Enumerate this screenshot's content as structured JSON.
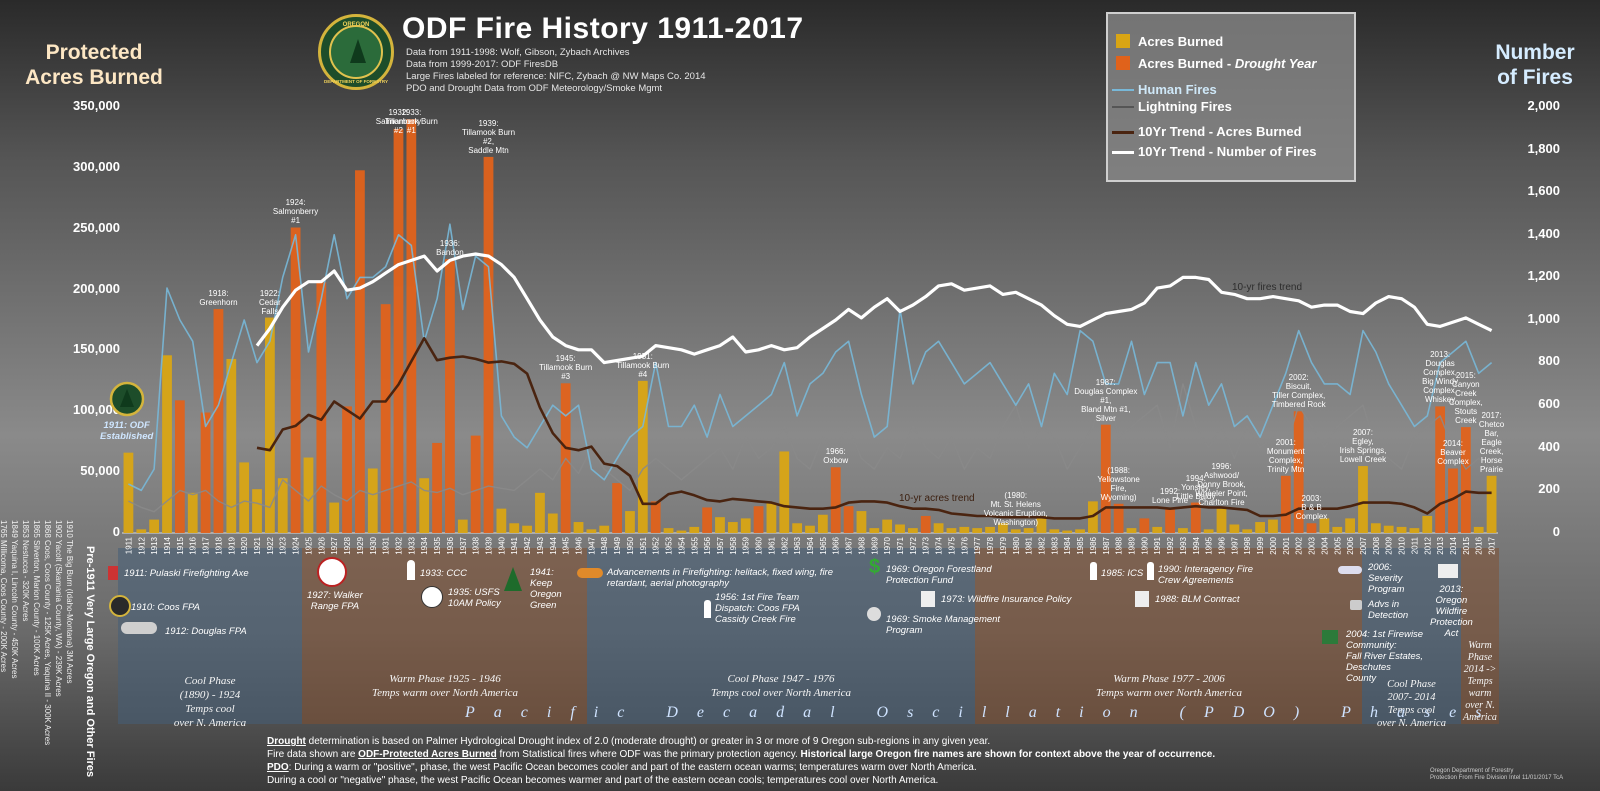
{
  "header": {
    "title": "ODF Fire History 1911-2017",
    "sources": [
      "Data from 1911-1998: Wolf, Gibson, Zybach Archives",
      "Data from 1999-2017: ODF FiresDB",
      "Large Fires labeled for reference: NIFC, Zybach @ NW Maps Co. 2014",
      "PDO and Drought Data from ODF Meteorology/Smoke Mgmt"
    ],
    "logo_top": "OREGON",
    "logo_bottom": "DEPARTMENT OF FORESTRY"
  },
  "axes": {
    "left_title_1": "Protected",
    "left_title_2": "Acres Burned",
    "right_title_1": "Number",
    "right_title_2": "of Fires",
    "left_ticks": [
      "350,000",
      "300,000",
      "250,000",
      "200,000",
      "150,000",
      "100,000",
      "50,000",
      "0"
    ],
    "right_ticks": [
      "2,000",
      "1,800",
      "1,600",
      "1,400",
      "1,200",
      "1,000",
      "800",
      "600",
      "400",
      "200",
      "0"
    ]
  },
  "legend": {
    "acres": "Acres Burned",
    "acres_drought_prefix": "Acres Burned - ",
    "acres_drought_suffix": "Drought Year",
    "human": "Human Fires",
    "lightning": "Lightning Fires",
    "trend_acres": "10Yr Trend - Acres Burned",
    "trend_fires": "10Yr Trend - Number of Fires"
  },
  "colors": {
    "acres": "#d9a514",
    "drought": "#e0621b",
    "human": "#78b8d8",
    "lightning": "#8a8a8a",
    "trend_acres": "#4a2410",
    "trend_fires": "#ffffff"
  },
  "chart_data": {
    "type": "bar",
    "title": "ODF Fire History 1911-2017",
    "ylabel": "Protected Acres Burned",
    "y2label": "Number of Fires",
    "ylim": [
      0,
      350000
    ],
    "y2lim": [
      0,
      2000
    ],
    "years": [
      1911,
      1912,
      1913,
      1914,
      1915,
      1916,
      1917,
      1918,
      1919,
      1920,
      1921,
      1922,
      1923,
      1924,
      1925,
      1926,
      1927,
      1928,
      1929,
      1930,
      1931,
      1932,
      1933,
      1934,
      1935,
      1936,
      1937,
      1938,
      1939,
      1940,
      1941,
      1942,
      1943,
      1944,
      1945,
      1946,
      1947,
      1948,
      1949,
      1950,
      1951,
      1952,
      1953,
      1954,
      1955,
      1956,
      1957,
      1958,
      1959,
      1960,
      1961,
      1962,
      1963,
      1964,
      1965,
      1966,
      1967,
      1968,
      1969,
      1970,
      1971,
      1972,
      1973,
      1974,
      1975,
      1976,
      1977,
      1978,
      1979,
      1980,
      1981,
      1982,
      1983,
      1984,
      1985,
      1986,
      1987,
      1988,
      1989,
      1990,
      1991,
      1992,
      1993,
      1994,
      1995,
      1996,
      1997,
      1998,
      1999,
      2000,
      2001,
      2002,
      2003,
      2004,
      2005,
      2006,
      2007,
      2008,
      2009,
      2010,
      2011,
      2012,
      2013,
      2014,
      2015,
      2016,
      2017
    ],
    "acres_burned": [
      66000,
      3000,
      11000,
      146000,
      109000,
      33000,
      99000,
      184000,
      143000,
      58000,
      36000,
      177000,
      45000,
      251000,
      62000,
      206000,
      25000,
      104000,
      298000,
      53000,
      188000,
      332000,
      340000,
      45000,
      74000,
      225000,
      11000,
      80000,
      309000,
      20000,
      8000,
      6000,
      33000,
      16000,
      123000,
      9000,
      3000,
      6000,
      41000,
      18000,
      125000,
      26000,
      4000,
      2000,
      5000,
      21000,
      13000,
      9000,
      12000,
      22000,
      25000,
      67000,
      8000,
      6000,
      15000,
      54000,
      22000,
      18000,
      4000,
      11000,
      7000,
      4000,
      14000,
      8000,
      4000,
      5000,
      4000,
      5000,
      8000,
      3000,
      4000,
      14000,
      3000,
      2000,
      3000,
      26000,
      89000,
      24000,
      4000,
      12000,
      5000,
      21000,
      4000,
      25000,
      3000,
      20000,
      7000,
      3000,
      9000,
      11000,
      47000,
      100000,
      8000,
      12000,
      5000,
      12000,
      55000,
      8000,
      6000,
      5000,
      4000,
      14000,
      104000,
      53000,
      87000,
      5000,
      47000
    ],
    "drought_years": [
      1915,
      1917,
      1918,
      1924,
      1926,
      1928,
      1929,
      1931,
      1932,
      1933,
      1935,
      1936,
      1938,
      1939,
      1945,
      1949,
      1952,
      1956,
      1960,
      1966,
      1967,
      1973,
      1987,
      1988,
      1990,
      1992,
      1994,
      2001,
      2002,
      2003,
      2013,
      2014,
      2015
    ],
    "human_fires": [
      230,
      200,
      300,
      1150,
      1000,
      900,
      500,
      600,
      800,
      1000,
      800,
      900,
      1200,
      1400,
      850,
      1100,
      1400,
      1100,
      1200,
      1200,
      1250,
      1400,
      1350,
      900,
      1100,
      1450,
      1050,
      1300,
      1250,
      550,
      450,
      400,
      500,
      600,
      550,
      600,
      300,
      250,
      350,
      450,
      500,
      800,
      500,
      500,
      600,
      450,
      650,
      500,
      550,
      600,
      650,
      800,
      550,
      700,
      750,
      850,
      900,
      650,
      450,
      500,
      1050,
      700,
      850,
      900,
      800,
      700,
      750,
      800,
      700,
      600,
      700,
      500,
      750,
      650,
      950,
      900,
      700,
      700,
      900,
      650,
      800,
      800,
      550,
      800,
      600,
      700,
      500,
      550,
      450,
      600,
      750,
      950,
      800,
      700,
      700,
      650,
      950,
      850,
      700,
      600,
      500,
      550,
      800,
      850,
      900,
      750,
      800
    ],
    "lightning_fires": [
      150,
      120,
      100,
      150,
      200,
      180,
      200,
      150,
      120,
      150,
      140,
      120,
      250,
      200,
      150,
      220,
      180,
      150,
      200,
      180,
      200,
      220,
      240,
      200,
      190,
      210,
      180,
      200,
      220,
      210,
      200,
      250,
      300,
      250,
      350,
      280,
      400,
      300,
      250,
      200,
      300,
      350,
      300,
      250,
      300,
      350,
      400,
      300,
      450,
      350,
      400,
      500,
      350,
      300,
      450,
      400,
      500,
      350,
      300,
      400,
      350,
      500,
      400,
      350,
      450,
      300,
      400,
      350,
      500,
      600,
      400,
      500,
      450,
      300,
      400,
      500,
      700,
      450,
      500,
      550,
      600,
      400,
      700,
      500,
      400,
      500,
      350,
      500,
      400,
      450,
      400,
      600,
      500,
      400,
      500,
      550,
      600,
      400,
      350,
      300,
      450,
      500,
      550,
      400,
      300,
      350,
      300
    ],
    "trend_acres": [
      null,
      null,
      null,
      null,
      null,
      null,
      null,
      null,
      null,
      null,
      70000,
      68000,
      85000,
      88000,
      97000,
      93000,
      108000,
      101000,
      94000,
      108000,
      108000,
      122000,
      141000,
      160000,
      142000,
      144000,
      145000,
      143000,
      140000,
      141000,
      139000,
      131000,
      103000,
      82000,
      70000,
      68000,
      71000,
      57000,
      55000,
      47000,
      24000,
      24000,
      32000,
      34000,
      31000,
      27000,
      26000,
      28000,
      27000,
      26000,
      25000,
      22000,
      21000,
      20000,
      20000,
      21000,
      25000,
      26000,
      26000,
      25000,
      22000,
      20000,
      20000,
      19000,
      16000,
      15000,
      14000,
      14000,
      13000,
      13000,
      13000,
      13000,
      12000,
      12000,
      12000,
      14000,
      21000,
      21000,
      21000,
      21000,
      21000,
      20000,
      21000,
      22000,
      21000,
      21000,
      20000,
      19000,
      14000,
      14000,
      15000,
      20000,
      20000,
      20000,
      20000,
      22000,
      25000,
      25000,
      25000,
      24000,
      21000,
      16000,
      24000,
      28000,
      34000,
      33000,
      33000
    ],
    "trend_fires": [
      null,
      null,
      null,
      null,
      null,
      null,
      null,
      null,
      null,
      null,
      880,
      960,
      1060,
      1140,
      1180,
      1180,
      1230,
      1140,
      1150,
      1180,
      1220,
      1260,
      1280,
      1300,
      1230,
      1280,
      1300,
      1310,
      1300,
      1260,
      1200,
      1100,
      1000,
      920,
      880,
      860,
      860,
      800,
      810,
      820,
      830,
      880,
      870,
      860,
      840,
      860,
      880,
      920,
      850,
      860,
      880,
      860,
      870,
      920,
      960,
      1000,
      1050,
      1010,
      1060,
      1100,
      1040,
      1070,
      1110,
      1160,
      1170,
      1140,
      1150,
      1160,
      1120,
      1130,
      1100,
      1070,
      1020,
      980,
      970,
      1000,
      1030,
      1040,
      1050,
      1080,
      1150,
      1160,
      1200,
      1200,
      1190,
      1130,
      1120,
      1100,
      1100,
      1110,
      1100,
      1090,
      1060,
      1070,
      1070,
      1040,
      1030,
      1080,
      1110,
      1100,
      1060,
      980,
      970,
      990,
      1010,
      980,
      950
    ]
  },
  "fire_labels": [
    {
      "year": 1918,
      "lines": [
        "1918:",
        "Greenhorn"
      ]
    },
    {
      "year": 1922,
      "lines": [
        "1922:",
        "Cedar",
        "Falls"
      ]
    },
    {
      "year": 1924,
      "lines": [
        "1924:",
        "Salmonberry",
        "#1"
      ]
    },
    {
      "year": 1932,
      "lines": [
        "1932:",
        "Salmonberry",
        "#2"
      ]
    },
    {
      "year": 1933,
      "lines": [
        "1933:",
        "Tillamook Burn",
        "#1"
      ]
    },
    {
      "year": 1936,
      "lines": [
        "1936:",
        "Bandon"
      ]
    },
    {
      "year": 1939,
      "lines": [
        "1939:",
        "Tillamook Burn",
        "#2,",
        "Saddle Mtn"
      ]
    },
    {
      "year": 1945,
      "lines": [
        "1945:",
        "Tillamook Burn",
        "#3"
      ]
    },
    {
      "year": 1951,
      "lines": [
        "1951:",
        "Tillamook Burn",
        "#4"
      ]
    },
    {
      "year": 1966,
      "lines": [
        "1966:",
        "Oxbow"
      ]
    },
    {
      "year": 1980,
      "lines": [
        "(1980:",
        "Mt. St. Helens",
        "Volcanic Eruption,",
        "Washington)"
      ]
    },
    {
      "year": 1987,
      "lines": [
        "1987:",
        "Douglas Complex",
        "#1,",
        "Bland Mtn #1,",
        "Silver"
      ]
    },
    {
      "year": 1988,
      "lines": [
        "(1988:",
        "Yellowstone",
        "Fire,",
        "Wyoming)"
      ]
    },
    {
      "year": 1992,
      "lines": [
        "1992:",
        "Lone Pine"
      ]
    },
    {
      "year": 1994,
      "lines": [
        "1994:",
        "Yonsley,",
        "Little Baldy"
      ]
    },
    {
      "year": 1996,
      "lines": [
        "1996:",
        "Ashwood/",
        "Donny Brook,",
        "Wheeler Point,",
        "Charlton Fire"
      ]
    },
    {
      "year": 2001,
      "lines": [
        "2001:",
        "Monument",
        "Complex,",
        "Trinity Mtn"
      ]
    },
    {
      "year": 2002,
      "lines": [
        "2002:",
        "Biscuit,",
        "Tiller Complex,",
        "Timbered Rock"
      ]
    },
    {
      "year": 2003,
      "lines": [
        "2003:",
        "B & B",
        "Complex"
      ]
    },
    {
      "year": 2007,
      "lines": [
        "2007:",
        "Egley,",
        "Irish Springs,",
        "Lowell Creek"
      ]
    },
    {
      "year": 2013,
      "lines": [
        "2013:",
        "Douglas",
        "Complex,",
        "Big Windy",
        "Complex,",
        "Whiskey"
      ]
    },
    {
      "year": 2014,
      "lines": [
        "2014:",
        "Beaver",
        "Complex"
      ]
    },
    {
      "year": 2015,
      "lines": [
        "2015:",
        "Canyon",
        "Creek",
        "Complex,",
        "Stouts",
        "Creek"
      ]
    },
    {
      "year": 2017,
      "lines": [
        "2017:",
        "Chetco",
        "Bar,",
        "Eagle",
        "Creek,",
        "Horse",
        "Prairie"
      ]
    }
  ],
  "odf_established": [
    "1911: ODF",
    "Established"
  ],
  "trend_labels": {
    "acres": "10-yr acres trend",
    "fires": "10-yr fires trend"
  },
  "events": [
    {
      "text": "1911: Pulaski Firefighting Axe",
      "icon": "axe-icon"
    },
    {
      "text": "1910: Coos FPA",
      "icon": "badge-icon"
    },
    {
      "text": "1912: Douglas FPA",
      "icon": "car-icon"
    },
    {
      "text": "1927: Walker\nRange FPA",
      "icon": "emblem-icon"
    },
    {
      "text": "1933: CCC",
      "icon": "person-icon"
    },
    {
      "text": "1935: USFS\n10AM Policy",
      "icon": "clock-icon"
    },
    {
      "text": "1941:\nKeep\nOregon\nGreen",
      "icon": "tree-icon"
    },
    {
      "text": "Advancements in Firefighting: helitack, fixed wing, fire\nretardant, aerial photography",
      "icon": "helicopter-icon"
    },
    {
      "text": "1956: 1st Fire Team\nDispatch: Coos FPA\nCassidy Creek Fire",
      "icon": "person-icon"
    },
    {
      "text": "1969: Oregon Forestland\nProtection Fund",
      "icon": "dollar-icon"
    },
    {
      "text": "1973: Wildfire Insurance Policy",
      "icon": "document-icon"
    },
    {
      "text": "1969: Smoke Management\nProgram",
      "icon": "smoke-icon"
    },
    {
      "text": "1985: ICS",
      "icon": "person-icon"
    },
    {
      "text": "1990: Interagency Fire\nCrew Agreements",
      "icon": "person-icon"
    },
    {
      "text": "1988: BLM Contract",
      "icon": "document-icon"
    },
    {
      "text": "2006:\nSeverity\nProgram",
      "icon": "plane-icon"
    },
    {
      "text": "Advs in\nDetection",
      "icon": "camera-icon"
    },
    {
      "text": "2013:\nOregon\nWildfire\nProtection\nAct",
      "icon": "capitol-icon"
    },
    {
      "text": "2004: 1st Firewise\nCommunity:\nFall River Estates,\nDeschutes\nCounty",
      "icon": "house-icon"
    }
  ],
  "phases": [
    {
      "text": "Cool Phase\n(1890) - 1924\nTemps cool\nover N. America"
    },
    {
      "text": "Warm Phase 1925 - 1946\nTemps warm over North America"
    },
    {
      "text": "Cool Phase 1947 - 1976\nTemps cool over North America"
    },
    {
      "text": "Warm Phase 1977 - 2006\nTemps warm over North America"
    },
    {
      "text": "Cool Phase\n2007- 2014\nTemps cool\nover N. America"
    },
    {
      "text": "Warm\nPhase\n2014 ->\nTemps\nwarm\nover N.\nAmerica"
    }
  ],
  "pdo_banner": "Pacific Decadal Oscillation (PDO) Phases",
  "pre1911": {
    "heading": "Pre-1911 Very Large Oregon and Other Fires",
    "items": [
      "1910 The Big Burn (Idaho-Montana) 3M Acres",
      "1902 Yacolt (Skamania County, WA) - 239K Acres",
      "1868 Coos, Coos County - 125K Acres, Yaquina II - 300K Acres",
      "1865 Silverton, Marion County - 100K Acres",
      "1853 Nestucca - 320K Acres",
      "1849 Yaquina I, Lincoln County - 450K Acres",
      "1765 Millicoma, Coos County - 200K Acres"
    ]
  },
  "notes": {
    "n1_label": "Drought",
    "n1_rest": " determination is based on Palmer Hydrological Drought index of 2.0 (moderate drought) or greater in 3 or more of 9 Oregon sub-regions in any given year.",
    "n2_a": "Fire data shown are ",
    "n2_b": "ODF-Protected Acres Burned",
    "n2_c": " from Statistical fires where ODF was the primary protection agency. ",
    "n2_d": "Historical large Oregon fire names are shown for context above the year of occurrence.",
    "n3_label": "PDO",
    "n3_rest": ": During a warm or \"positive\", phase, the west Pacific Ocean becomes cooler and part of the eastern ocean warms; temperatures warm over North America.",
    "n4": "During a cool or \"negative\" phase, the west Pacific Ocean becomes warmer and part of the eastern ocean cools; temperatures cool over North America."
  },
  "credit": [
    "Oregon Department of Forestry",
    "Protection From Fire Division Intel 11/01/2017  TcA"
  ]
}
